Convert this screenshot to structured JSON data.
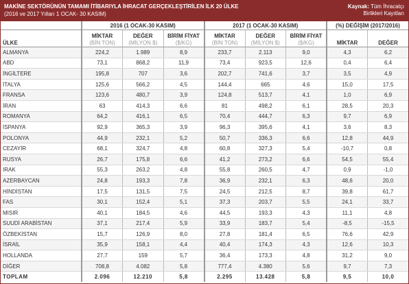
{
  "header": {
    "title": "MAKİNE SEKTÖRÜNÜN TAMAMI İTİBARIYLA İHRACAT GERÇEKLEŞTİRİLEN İLK 20 ÜLKE",
    "subtitle": "(2016 ve 2017 Yılları 1 OCAK- 30 KASIM)",
    "source_label": "Kaynak:",
    "source_line1": "Tüm İhracatçı",
    "source_line2": "Birlikleri Kayıtları"
  },
  "table": {
    "country_header": "ÜLKE",
    "groups": [
      "2016 (1 OCAK-30 KASIM)",
      "2017 (1 OCAK-30 KASIM)",
      "(%) DEĞİŞİM (2017/2016)"
    ],
    "columns": [
      {
        "name": "MİKTAR",
        "unit": "(BİN TON)"
      },
      {
        "name": "DEĞER",
        "unit": "(MİLYON $)"
      },
      {
        "name": "BİRİM FİYAT",
        "unit": "($/KG)"
      },
      {
        "name": "MİKTAR",
        "unit": "(BİN TON)"
      },
      {
        "name": "DEĞER",
        "unit": "(MİLYON $)"
      },
      {
        "name": "BİRİM FİYAT",
        "unit": "($/KG)"
      },
      {
        "name": "MİKTAR"
      },
      {
        "name": "DEĞER"
      }
    ],
    "rows": [
      [
        "ALMANYA",
        "224,2",
        "1.989",
        "8,9",
        "233,7",
        "2.113",
        "9,0",
        "4,3",
        "6,2"
      ],
      [
        "ABD",
        "73,1",
        "868,2",
        "11,9",
        "73,4",
        "923,5",
        "12,6",
        "0,4",
        "6,4"
      ],
      [
        "İNGİLTERE",
        "195,8",
        "707",
        "3,6",
        "202,7",
        "741,6",
        "3,7",
        "3,5",
        "4,9"
      ],
      [
        "İTALYA",
        "125,6",
        "566,2",
        "4,5",
        "144,4",
        "665",
        "4,6",
        "15,0",
        "17,5"
      ],
      [
        "FRANSA",
        "123,6",
        "480,7",
        "3,9",
        "124,8",
        "513,7",
        "4,1",
        "1,0",
        "6,9"
      ],
      [
        "İRAN",
        "63",
        "414,3",
        "6,6",
        "81",
        "498,2",
        "6,1",
        "28,5",
        "20,3"
      ],
      [
        "ROMANYA",
        "64,2",
        "416,1",
        "6,5",
        "70,4",
        "444,7",
        "6,3",
        "9,7",
        "6,9"
      ],
      [
        "İSPANYA",
        "92,9",
        "365,3",
        "3,9",
        "96,3",
        "395,6",
        "4,1",
        "3,6",
        "8,3"
      ],
      [
        "POLONYA",
        "44,9",
        "232,1",
        "5,2",
        "50,7",
        "336,3",
        "6,6",
        "12,8",
        "44,9"
      ],
      [
        "CEZAYİR",
        "68,1",
        "324,7",
        "4,8",
        "60,8",
        "327,3",
        "5,4",
        "-10,7",
        "0,8"
      ],
      [
        "RUSYA",
        "26,7",
        "175,8",
        "6,6",
        "41,2",
        "273,2",
        "6,6",
        "54,5",
        "55,4"
      ],
      [
        "IRAK",
        "55,3",
        "263,2",
        "4,8",
        "55,8",
        "260,5",
        "4,7",
        "0,9",
        "-1,0"
      ],
      [
        "AZERBAYCAN",
        "24,8",
        "193,3",
        "7,8",
        "36,9",
        "232,1",
        "6,3",
        "48,6",
        "20,0"
      ],
      [
        "HİNDİSTAN",
        "17,5",
        "131,5",
        "7,5",
        "24,5",
        "212,5",
        "8,7",
        "39,8",
        "61,7"
      ],
      [
        "FAS",
        "30,1",
        "152,4",
        "5,1",
        "37,3",
        "203,7",
        "5,5",
        "24,1",
        "33,7"
      ],
      [
        "MISIR",
        "40,1",
        "184,5",
        "4,6",
        "44,5",
        "193,3",
        "4,3",
        "11,1",
        "4,8"
      ],
      [
        "SUUDİ ARABİSTAN",
        "37,1",
        "217,4",
        "5,9",
        "33,9",
        "183,7",
        "5,4",
        "-8,5",
        "-15,5"
      ],
      [
        "ÖZBEKİSTAN",
        "15,7",
        "126,9",
        "8,0",
        "27,8",
        "181,4",
        "6,5",
        "76,6",
        "42,9"
      ],
      [
        "İSRAİL",
        "35,9",
        "158,1",
        "4,4",
        "40,4",
        "174,3",
        "4,3",
        "12,6",
        "10,3"
      ],
      [
        "HOLLANDA",
        "27,7",
        "159",
        "5,7",
        "36,4",
        "173,3",
        "4,8",
        "31,2",
        "9,0"
      ],
      [
        "DİĞER",
        "708,8",
        "4.082",
        "5,8",
        "777,4",
        "4.380",
        "5,6",
        "9,7",
        "7,3"
      ]
    ],
    "total": [
      "TOPLAM",
      "2.096",
      "12.210",
      "5,8",
      "2.295",
      "13.428",
      "5,8",
      "9,5",
      "10,0"
    ]
  }
}
